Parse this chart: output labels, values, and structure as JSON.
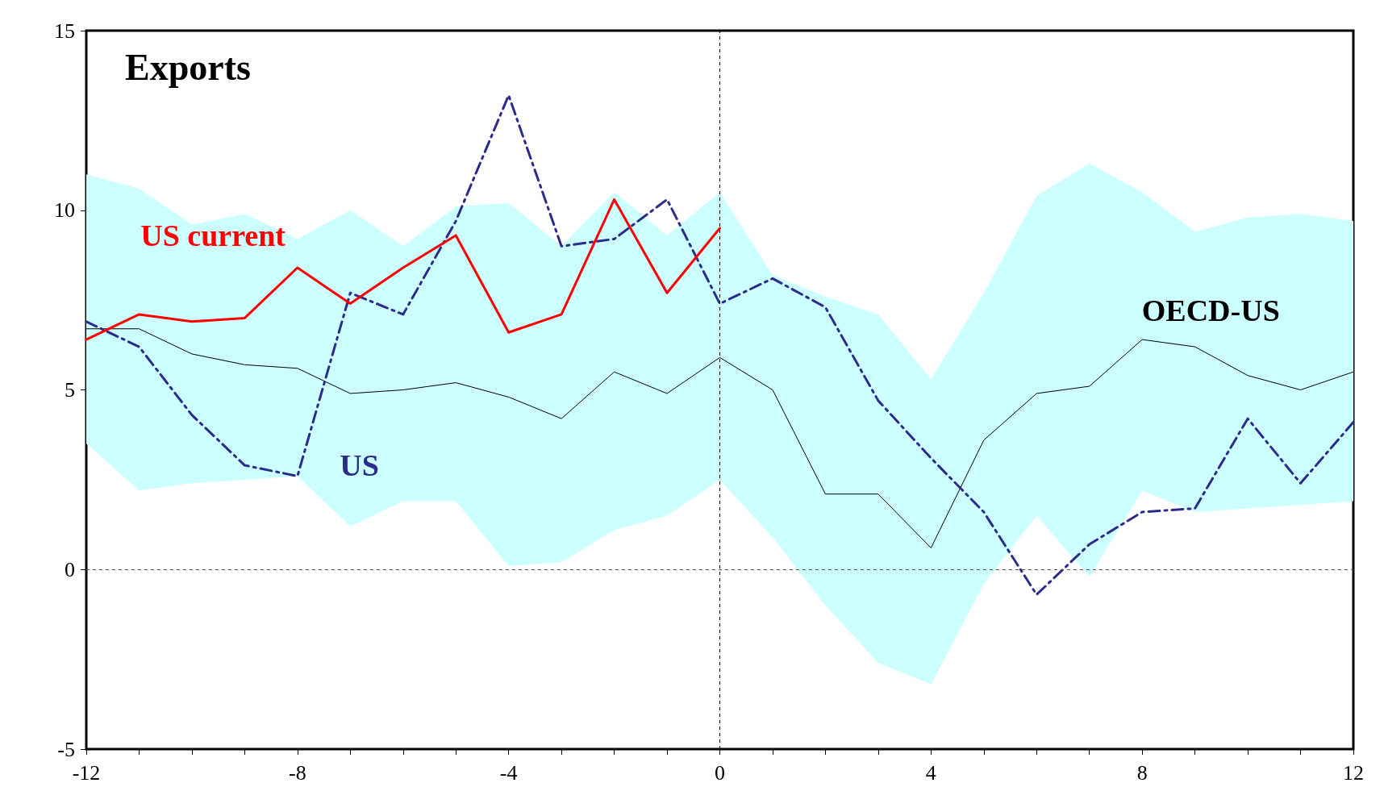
{
  "chart_data": {
    "type": "line",
    "title": "Exports",
    "x": [
      -12,
      -11,
      -10,
      -9,
      -8,
      -7,
      -6,
      -5,
      -4,
      -3,
      -2,
      -1,
      0,
      1,
      2,
      3,
      4,
      5,
      6,
      7,
      8,
      9,
      10,
      11,
      12
    ],
    "series": [
      {
        "name": "OECD-US",
        "color": "#000000",
        "line_style": "solid",
        "values": [
          6.7,
          6.7,
          6.0,
          5.7,
          5.6,
          4.9,
          5.0,
          5.2,
          4.8,
          4.2,
          5.5,
          4.9,
          5.9,
          5.0,
          2.1,
          2.1,
          0.6,
          3.6,
          4.9,
          5.1,
          6.4,
          6.2,
          5.4,
          5.0,
          5.5
        ],
        "lower": [
          3.5,
          2.2,
          2.4,
          2.5,
          2.6,
          1.2,
          1.9,
          1.9,
          0.1,
          0.2,
          1.1,
          1.5,
          2.5,
          0.9,
          -1.0,
          -2.6,
          -3.2,
          -0.4,
          1.5,
          -0.2,
          2.2,
          1.6,
          1.7,
          1.8,
          1.9
        ],
        "upper": [
          11.0,
          10.6,
          9.6,
          9.9,
          9.2,
          10.0,
          9.0,
          10.1,
          10.2,
          9.0,
          10.5,
          9.3,
          10.5,
          8.2,
          7.6,
          7.1,
          5.3,
          7.7,
          10.4,
          11.3,
          10.5,
          9.4,
          9.8,
          9.9,
          9.7
        ]
      },
      {
        "name": "US",
        "color": "#2b2b8c",
        "line_style": "dashed",
        "values": [
          6.9,
          6.2,
          4.3,
          2.9,
          2.6,
          7.7,
          7.1,
          9.7,
          13.2,
          9.0,
          9.2,
          10.3,
          7.4,
          8.1,
          7.3,
          4.7,
          3.1,
          1.6,
          -0.7,
          0.7,
          1.6,
          1.7,
          4.2,
          2.4,
          4.1
        ]
      },
      {
        "name": "US current",
        "color": "#ff0000",
        "line_style": "solid",
        "x": [
          -12,
          -11,
          -10,
          -9,
          -8,
          -7,
          -6,
          -5,
          -4,
          -3,
          -2,
          -1,
          0
        ],
        "values": [
          6.4,
          7.1,
          6.9,
          7.0,
          8.4,
          7.4,
          8.4,
          9.3,
          6.6,
          7.1,
          10.3,
          7.7,
          9.5
        ]
      }
    ],
    "xlim": [
      -12,
      12
    ],
    "xticks": [
      -12,
      {
        "value": -11,
        "label": null
      },
      {
        "value": -10,
        "label": null
      },
      {
        "value": -9,
        "label": null
      },
      -8,
      {
        "value": -7,
        "label": null
      },
      {
        "value": -6,
        "label": null
      },
      {
        "value": -5,
        "label": null
      },
      -4,
      {
        "value": -3,
        "label": null
      },
      {
        "value": -2,
        "label": null
      },
      {
        "value": -1,
        "label": null
      },
      0,
      {
        "value": 1,
        "label": null
      },
      {
        "value": 2,
        "label": null
      },
      {
        "value": 3,
        "label": null
      },
      4,
      {
        "value": 5,
        "label": null
      },
      {
        "value": 6,
        "label": null
      },
      {
        "value": 7,
        "label": null
      },
      8,
      {
        "value": 9,
        "label": null
      },
      {
        "value": 10,
        "label": null
      },
      {
        "value": 11,
        "label": null
      },
      12
    ],
    "ylim": [
      -5,
      15
    ],
    "yticks": [
      -5,
      0,
      5,
      10,
      15
    ],
    "ref_lines": [
      {
        "axis": "y",
        "value": 0,
        "color": "#555555",
        "line_style": "dashed"
      },
      {
        "axis": "x",
        "value": 0,
        "color": "#000000",
        "line_style": "dashed"
      }
    ],
    "grid": false,
    "legend": false,
    "marker": "none"
  }
}
